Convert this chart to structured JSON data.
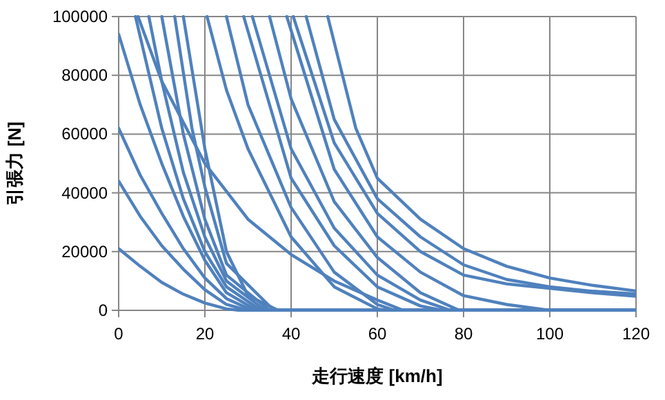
{
  "chart_data": {
    "type": "line",
    "xlabel": "走行速度 [km/h]",
    "ylabel": "引張力 [N]",
    "xlim": [
      0,
      120
    ],
    "ylim": [
      0,
      100000
    ],
    "xticks": [
      0,
      20,
      40,
      60,
      80,
      100,
      120
    ],
    "yticks": [
      0,
      20000,
      40000,
      60000,
      80000,
      100000
    ],
    "grid": true,
    "series": [
      {
        "color": "#4f81bd",
        "x": [
          0,
          5,
          10,
          15,
          20,
          25,
          28,
          120
        ],
        "values": [
          21000,
          15000,
          9500,
          5500,
          2500,
          500,
          0,
          0
        ]
      },
      {
        "color": "#4f81bd",
        "x": [
          0,
          5,
          10,
          15,
          20,
          25,
          30,
          120
        ],
        "values": [
          44000,
          32000,
          22000,
          14000,
          7000,
          2000,
          0,
          0
        ]
      },
      {
        "color": "#4f81bd",
        "x": [
          0,
          5,
          10,
          15,
          20,
          25,
          31,
          120
        ],
        "values": [
          62000,
          46000,
          33000,
          21000,
          11000,
          4000,
          0,
          0
        ]
      },
      {
        "color": "#4f81bd",
        "x": [
          0,
          5,
          10,
          15,
          20,
          25,
          32,
          120
        ],
        "values": [
          94000,
          70000,
          50000,
          32000,
          17000,
          6000,
          0,
          0
        ]
      },
      {
        "color": "#4f81bd",
        "x": [
          3.9,
          10,
          15,
          20,
          25,
          33,
          120
        ],
        "values": [
          100000,
          62000,
          38000,
          20000,
          8000,
          0,
          0
        ]
      },
      {
        "color": "#4f81bd",
        "x": [
          7,
          10,
          15,
          20,
          25,
          34,
          120
        ],
        "values": [
          100000,
          78000,
          47000,
          25000,
          10000,
          0,
          0
        ]
      },
      {
        "color": "#4f81bd",
        "x": [
          10,
          15,
          20,
          25,
          35,
          120
        ],
        "values": [
          100000,
          60000,
          31000,
          12000,
          0,
          0
        ]
      },
      {
        "color": "#4f81bd",
        "x": [
          13,
          17,
          20,
          25,
          36,
          120
        ],
        "values": [
          100000,
          62000,
          42000,
          16000,
          0,
          0
        ]
      },
      {
        "color": "#4f81bd",
        "x": [
          15,
          20,
          25,
          30,
          37,
          120
        ],
        "values": [
          100000,
          55000,
          20000,
          5000,
          0,
          0
        ]
      },
      {
        "color": "#4f81bd",
        "x": [
          4.5,
          10,
          20,
          30,
          40,
          50,
          60,
          66,
          120
        ],
        "values": [
          100000,
          78000,
          50000,
          31000,
          19000,
          10000,
          3500,
          0,
          0
        ]
      },
      {
        "color": "#4f81bd",
        "x": [
          20.5,
          25,
          30,
          40,
          50,
          60,
          62,
          120
        ],
        "values": [
          100000,
          75000,
          55000,
          25000,
          8000,
          500,
          0,
          0
        ]
      },
      {
        "color": "#4f81bd",
        "x": [
          25,
          30,
          40,
          50,
          60,
          64,
          120
        ],
        "values": [
          100000,
          70000,
          35000,
          13000,
          2000,
          0,
          0
        ]
      },
      {
        "color": "#4f81bd",
        "x": [
          29,
          40,
          50,
          60,
          70,
          75,
          120
        ],
        "values": [
          100000,
          45000,
          22000,
          8000,
          1500,
          0,
          0
        ]
      },
      {
        "color": "#4f81bd",
        "x": [
          31,
          40,
          50,
          60,
          70,
          77,
          120
        ],
        "values": [
          100000,
          55000,
          28000,
          12000,
          3500,
          0,
          0
        ]
      },
      {
        "color": "#4f81bd",
        "x": [
          35,
          40,
          50,
          60,
          70,
          79,
          120
        ],
        "values": [
          100000,
          72000,
          37000,
          18000,
          6000,
          0,
          0
        ]
      },
      {
        "color": "#4f81bd",
        "x": [
          39,
          50,
          60,
          70,
          80,
          90,
          100,
          120
        ],
        "values": [
          100000,
          48000,
          25000,
          13000,
          5000,
          2000,
          0,
          0
        ]
      },
      {
        "color": "#4f81bd",
        "x": [
          40.5,
          50,
          60,
          70,
          80,
          90,
          100,
          110,
          120
        ],
        "values": [
          100000,
          57000,
          33000,
          20000,
          12000,
          9000,
          7500,
          6000,
          4800
        ]
      },
      {
        "color": "#4f81bd",
        "x": [
          43.5,
          50,
          60,
          70,
          80,
          90,
          100,
          110,
          120
        ],
        "values": [
          100000,
          65000,
          38000,
          25000,
          15500,
          10500,
          8000,
          6500,
          5600
        ]
      },
      {
        "color": "#4f81bd",
        "x": [
          48.5,
          55,
          60,
          70,
          80,
          90,
          100,
          110,
          120
        ],
        "values": [
          100000,
          62000,
          45000,
          31000,
          21000,
          15000,
          11000,
          8500,
          6600
        ]
      }
    ]
  }
}
